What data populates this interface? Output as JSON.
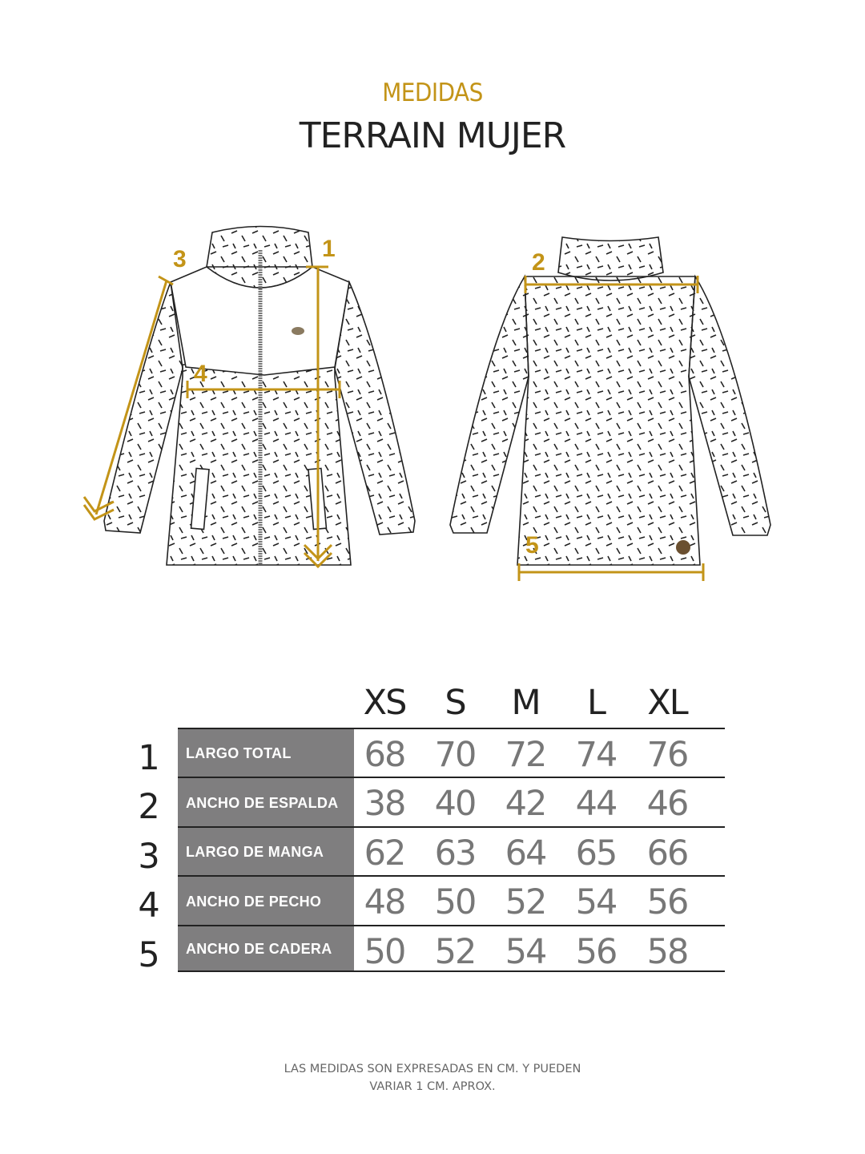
{
  "header": {
    "subtitle": "MEDIDAS",
    "title": "TERRAIN MUJER"
  },
  "colors": {
    "accent": "#c39418",
    "label_bg": "#7f7e7f",
    "value_text": "#777777"
  },
  "diagram_labels": {
    "front": [
      "1",
      "3",
      "4"
    ],
    "back": [
      "2",
      "5"
    ]
  },
  "table": {
    "sizes": [
      "XS",
      "S",
      "M",
      "L",
      "XL"
    ],
    "rows": [
      {
        "no": "1",
        "label": "LARGO TOTAL",
        "values": [
          "68",
          "70",
          "72",
          "74",
          "76"
        ]
      },
      {
        "no": "2",
        "label": "ANCHO DE ESPALDA",
        "values": [
          "38",
          "40",
          "42",
          "44",
          "46"
        ]
      },
      {
        "no": "3",
        "label": "LARGO DE MANGA",
        "values": [
          "62",
          "63",
          "64",
          "65",
          "66"
        ]
      },
      {
        "no": "4",
        "label": "ANCHO DE PECHO",
        "values": [
          "48",
          "50",
          "52",
          "54",
          "56"
        ]
      },
      {
        "no": "5",
        "label": "ANCHO DE CADERA",
        "values": [
          "50",
          "52",
          "54",
          "56",
          "58"
        ]
      }
    ]
  },
  "footer": {
    "line1": "LAS MEDIDAS SON EXPRESADAS EN CM. Y PUEDEN",
    "line2": "VARIAR 1 CM. APROX."
  }
}
